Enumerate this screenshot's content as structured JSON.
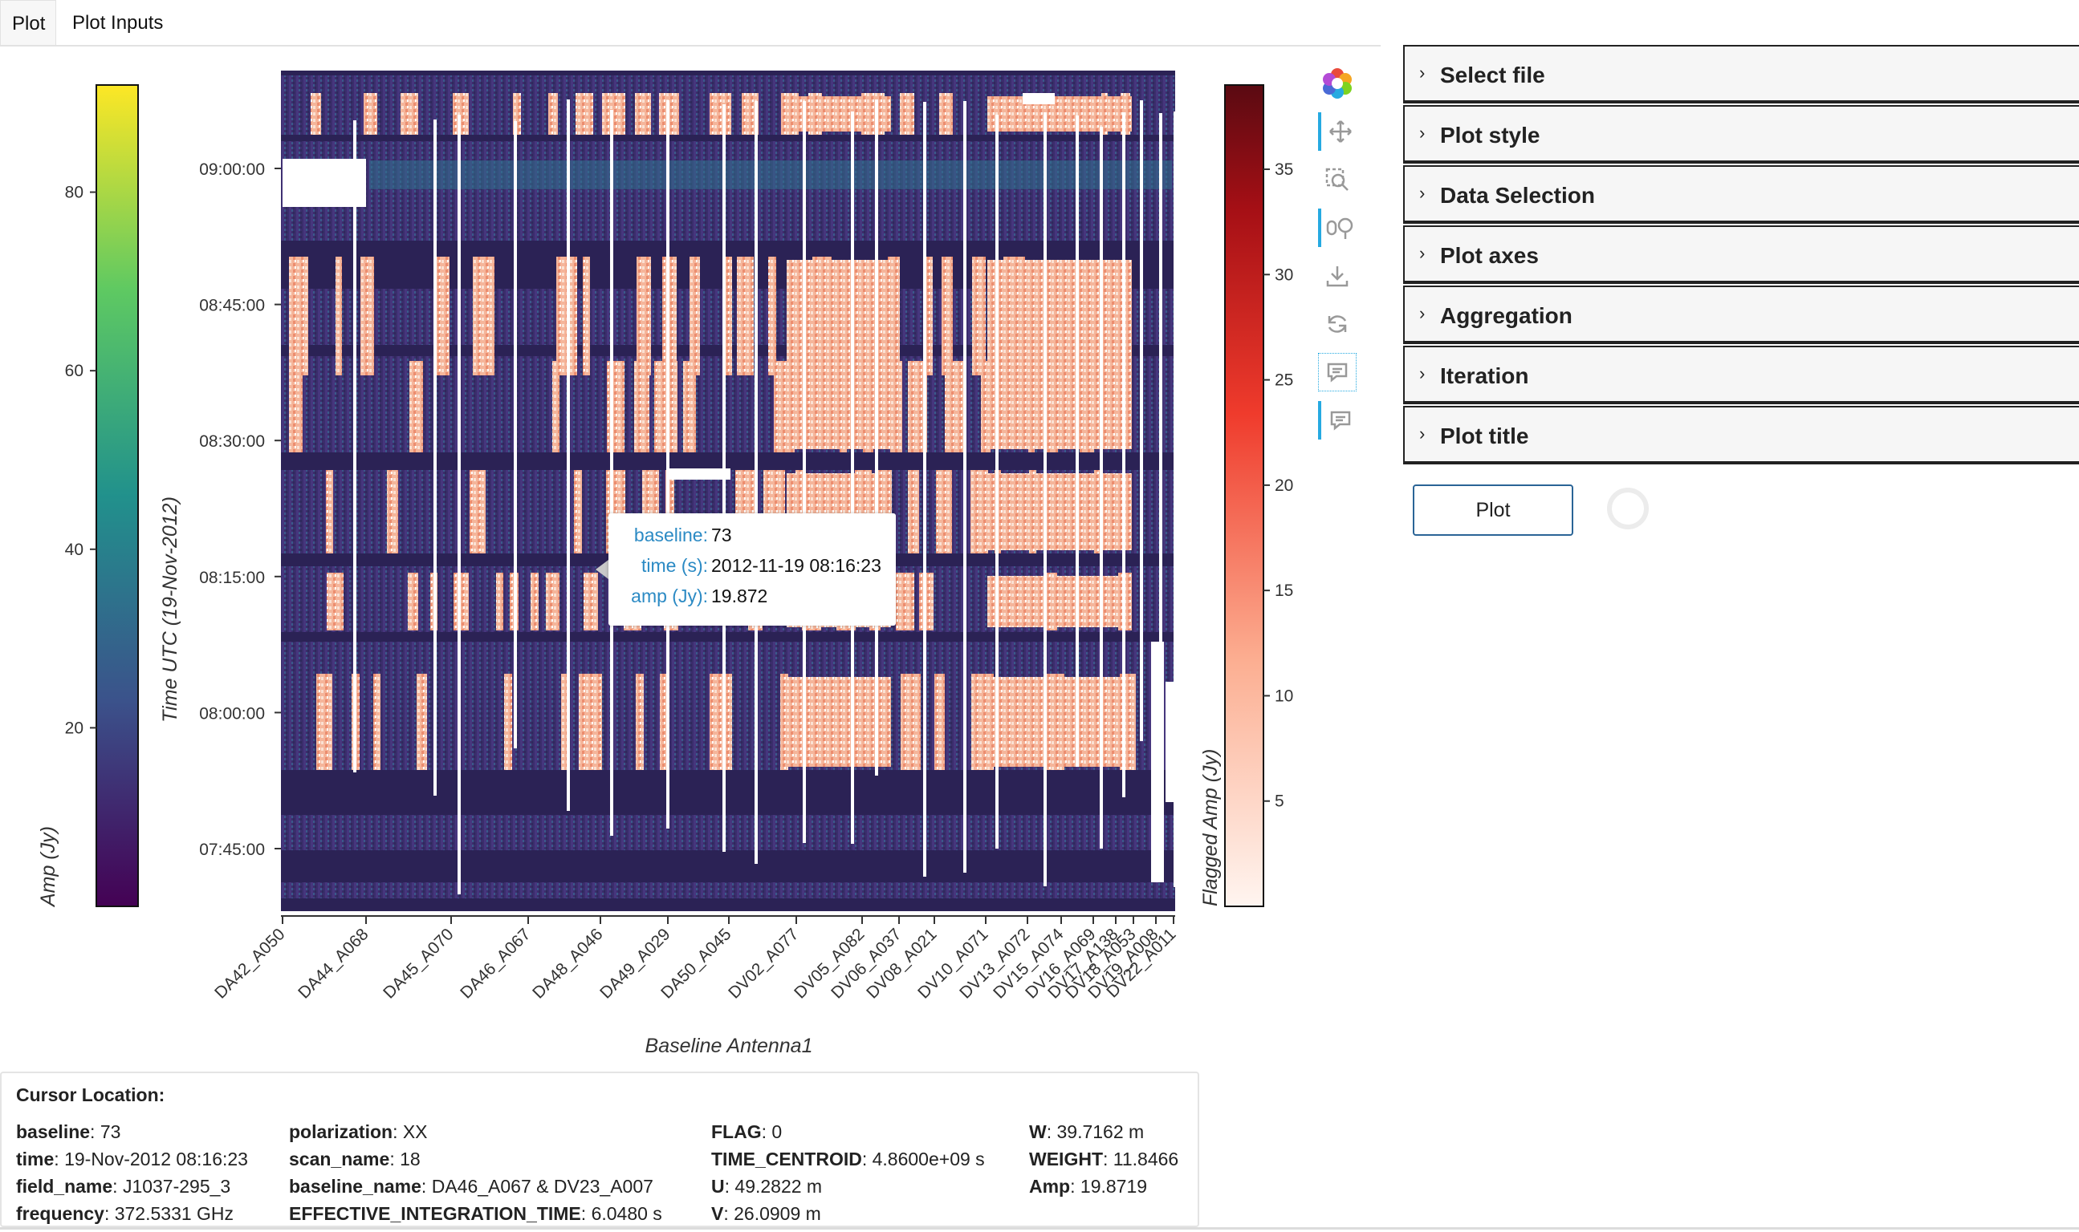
{
  "tabs": [
    {
      "label": "Plot"
    },
    {
      "label": "Plot Inputs"
    }
  ],
  "colors": {
    "accent": "#26aae1",
    "tooltip_key": "#2b8ac4",
    "plot_bg": "#3b2d6c",
    "flag_white": "#ffffff"
  },
  "chart_data": {
    "type": "heatmap",
    "title": "",
    "xlabel": "Baseline Antenna1",
    "ylabel": "Time UTC (19-Nov-2012)",
    "x_tick_labels": [
      "DA42_A050",
      "DA44_A068",
      "DA45_A070",
      "DA46_A067",
      "DA48_A046",
      "DA49_A029",
      "DA50_A045",
      "DV02_A077",
      "DV05_A082",
      "DV06_A037",
      "DV08_A021",
      "DV10_A071",
      "DV13_A072",
      "DV15_A074",
      "DV16_A069",
      "DV17_A138",
      "DV18_A053",
      "DV19_A008",
      "DV22_A011"
    ],
    "y_tick_labels": [
      "09:00:00",
      "08:45:00",
      "08:30:00",
      "08:15:00",
      "08:00:00",
      "07:45:00"
    ],
    "colorbar_left": {
      "label": "Amp (Jy)",
      "colormap": "viridis",
      "ticks": [
        80,
        60,
        40,
        20
      ],
      "range": [
        0,
        92
      ]
    },
    "colorbar_right": {
      "label": "Flagged Amp (Jy)",
      "colormap": "reds",
      "ticks": [
        35,
        30,
        25,
        20,
        15,
        10,
        5
      ],
      "range": [
        0,
        39
      ]
    }
  },
  "tooltip": {
    "rows": [
      {
        "key": "baseline:",
        "value": "73"
      },
      {
        "key": "time (s):",
        "value": "2012-11-19 08:16:23"
      },
      {
        "key": "amp (Jy):",
        "value": "19.872"
      }
    ]
  },
  "toolbar": {
    "tools": [
      {
        "icon": "bokeh-logo-icon"
      },
      {
        "icon": "pan-icon"
      },
      {
        "icon": "box-zoom-icon"
      },
      {
        "icon": "box-select-icon"
      },
      {
        "icon": "save-icon"
      },
      {
        "icon": "reset-icon"
      },
      {
        "icon": "hover-icon"
      },
      {
        "icon": "hover-icon"
      }
    ]
  },
  "accordion": [
    {
      "title": "Select file"
    },
    {
      "title": "Plot style"
    },
    {
      "title": "Data Selection"
    },
    {
      "title": "Plot axes"
    },
    {
      "title": "Aggregation"
    },
    {
      "title": "Iteration"
    },
    {
      "title": "Plot title"
    }
  ],
  "plot_button": "Plot",
  "cursor": {
    "title": "Cursor Location:",
    "columns": [
      [
        {
          "key": "baseline",
          "value": "73"
        },
        {
          "key": "time",
          "value": "19-Nov-2012 08:16:23"
        },
        {
          "key": "field_name",
          "value": "J1037-295_3"
        },
        {
          "key": "frequency",
          "value": "372.5331 GHz"
        }
      ],
      [
        {
          "key": "polarization",
          "value": "XX"
        },
        {
          "key": "scan_name",
          "value": "18"
        },
        {
          "key": "baseline_name",
          "value": "DA46_A067 & DV23_A007"
        },
        {
          "key": "EFFECTIVE_INTEGRATION_TIME",
          "value": "6.0480 s"
        }
      ],
      [
        {
          "key": "FLAG",
          "value": "0"
        },
        {
          "key": "TIME_CENTROID",
          "value": "4.8600e+09 s"
        },
        {
          "key": "U",
          "value": "49.2822 m"
        },
        {
          "key": "V",
          "value": "26.0909 m"
        }
      ],
      [
        {
          "key": "W",
          "value": "39.7162 m"
        },
        {
          "key": "WEIGHT",
          "value": "11.8466"
        },
        {
          "key": "Amp",
          "value": "19.8719"
        }
      ]
    ]
  }
}
